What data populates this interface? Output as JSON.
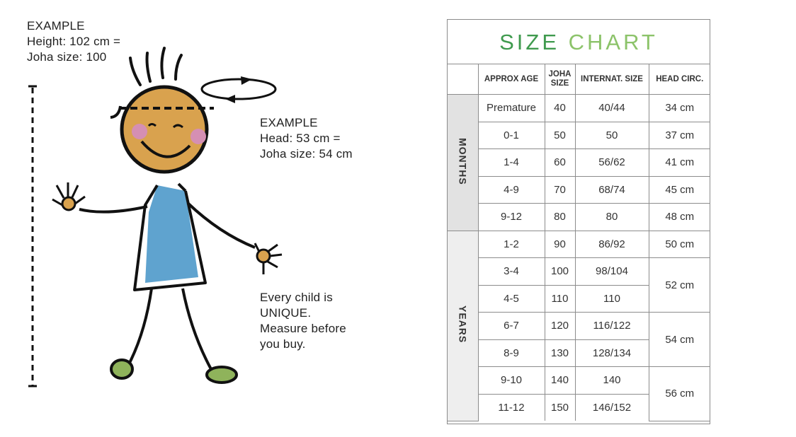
{
  "notes": {
    "height_example": "EXAMPLE\nHeight: 102 cm =\nJoha size: 100",
    "head_example": "EXAMPLE\nHead: 53 cm =\nJoha size: 54 cm",
    "unique": "Every child is\nUNIQUE.\nMeasure before\nyou buy."
  },
  "chart": {
    "title_word1": "SIZE",
    "title_word2": "CHART",
    "headers": {
      "approx_age": "APPROX AGE",
      "joha_size": "JOHA SIZE",
      "internat_size": "INTERNAT. SIZE",
      "head_circ": "HEAD CIRC."
    },
    "groups": {
      "months": "MONTHS",
      "years": "YEARS"
    },
    "rows": [
      {
        "age": "Premature",
        "joha": "40",
        "intl": "40/44",
        "head": "34 cm"
      },
      {
        "age": "0-1",
        "joha": "50",
        "intl": "50",
        "head": "37 cm"
      },
      {
        "age": "1-4",
        "joha": "60",
        "intl": "56/62",
        "head": "41 cm"
      },
      {
        "age": "4-9",
        "joha": "70",
        "intl": "68/74",
        "head": "45 cm"
      },
      {
        "age": "9-12",
        "joha": "80",
        "intl": "80",
        "head": "48 cm"
      },
      {
        "age": "1-2",
        "joha": "90",
        "intl": "86/92",
        "head": "50 cm"
      },
      {
        "age": "3-4",
        "joha": "100",
        "intl": "98/104",
        "head": "52 cm"
      },
      {
        "age": "4-5",
        "joha": "110",
        "intl": "110",
        "head": "52 cm"
      },
      {
        "age": "6-7",
        "joha": "120",
        "intl": "116/122",
        "head": "54 cm"
      },
      {
        "age": "8-9",
        "joha": "130",
        "intl": "128/134",
        "head": "54 cm"
      },
      {
        "age": "9-10",
        "joha": "140",
        "intl": "140",
        "head": "56 cm"
      },
      {
        "age": "11-12",
        "joha": "150",
        "intl": "146/152",
        "head": "56 cm"
      }
    ]
  },
  "colors": {
    "title_green_dark": "#3f9a4e",
    "title_green_light": "#8cc36a",
    "face": "#d9a24e",
    "shirt": "#5fa3cf",
    "shoes": "#8fb35b",
    "cheeks": "#d58fb3"
  }
}
